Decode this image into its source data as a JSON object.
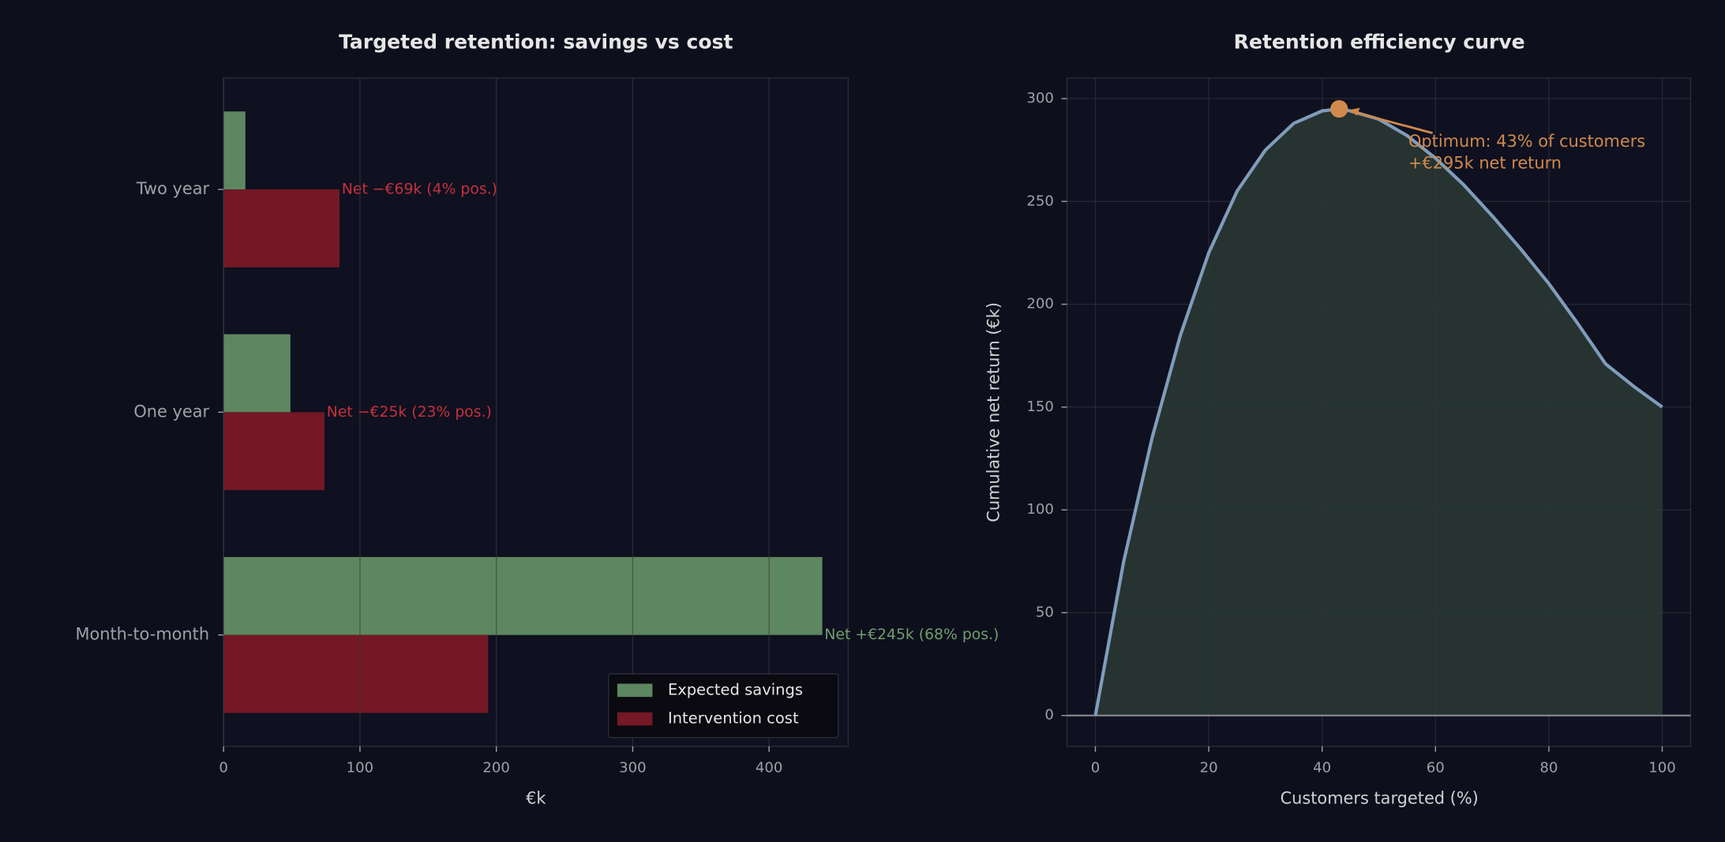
{
  "chart_data": [
    {
      "type": "hbar",
      "title": "Targeted retention: savings vs cost",
      "xlabel": "€k",
      "categories": [
        "Month-to-month",
        "One year",
        "Two year"
      ],
      "series": [
        {
          "name": "Expected savings",
          "color": "#5d8760",
          "values": [
            439,
            49,
            16
          ]
        },
        {
          "name": "Intervention cost",
          "color": "#731824",
          "values": [
            194,
            74,
            85
          ]
        }
      ],
      "annotations": [
        "Net +€245k (68% pos.)",
        "Net −€25k (23% pos.)",
        "Net −€69k (4% pos.)"
      ],
      "annotation_colors": [
        "#6e9e6e",
        "#c4313e",
        "#c4313e"
      ],
      "xlim": [
        0,
        458
      ],
      "xticks": [
        0,
        100,
        200,
        300,
        400
      ],
      "grid": true,
      "legend": "lower right"
    },
    {
      "type": "line",
      "title": "Retention efficiency curve",
      "xlabel": "Customers targeted (%)",
      "ylabel": "Cumulative net return (€k)",
      "x": [
        0,
        5,
        10,
        15,
        20,
        25,
        30,
        35,
        40,
        43,
        45,
        50,
        55,
        60,
        65,
        70,
        75,
        80,
        85,
        90,
        95,
        100
      ],
      "values": [
        0,
        75,
        135,
        185,
        225,
        255,
        275,
        288,
        294,
        295,
        294,
        290,
        282,
        271,
        258,
        243,
        227,
        210,
        191,
        171,
        160,
        150
      ],
      "color": "#7f9cba",
      "fill": "#2a3a34",
      "optimum": {
        "x": 43,
        "y": 295,
        "color": "#d08a4c",
        "label": [
          "Optimum: 43% of customers",
          "+€295k net return"
        ]
      },
      "xlim": [
        -5,
        105
      ],
      "ylim": [
        -15,
        310
      ],
      "xticks": [
        0,
        20,
        40,
        60,
        80,
        100
      ],
      "yticks": [
        0,
        50,
        100,
        150,
        200,
        250,
        300
      ],
      "grid": true
    }
  ]
}
